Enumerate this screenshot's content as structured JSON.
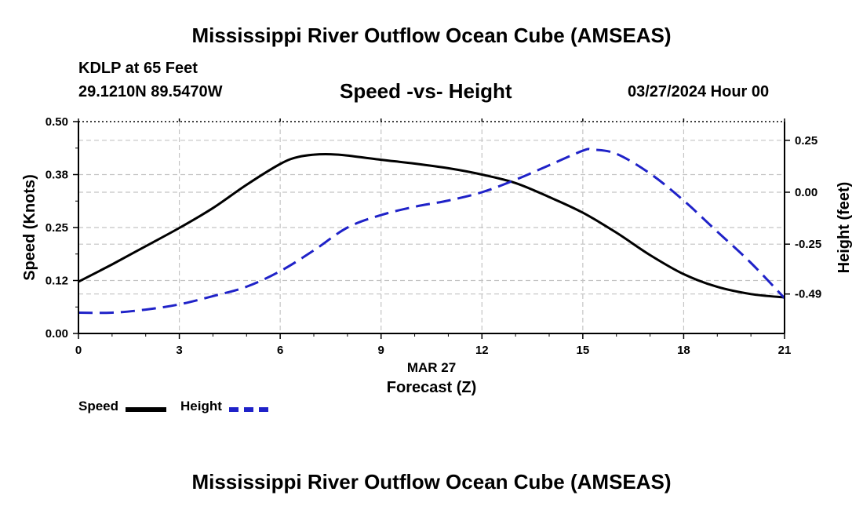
{
  "page": {
    "title": "Mississippi River Outflow Ocean Cube (AMSEAS)",
    "footer_title": "Mississippi River Outflow Ocean Cube (AMSEAS)",
    "station": "KDLP at 65 Feet",
    "coordinates": "29.1210N  89.5470W",
    "subtitle": "Speed -vs- Height",
    "datetime": "03/27/2024 Hour 00"
  },
  "legend": {
    "speed_label": "Speed",
    "height_label": "Height"
  },
  "colors": {
    "speed": "#000000",
    "height": "#1f22c8",
    "grid": "#c4c4c4"
  },
  "chart_data": {
    "type": "line",
    "title": "Speed -vs- Height",
    "xlabel": "Forecast (Z)",
    "xlabel_date": "MAR 27",
    "xlim": [
      0,
      21
    ],
    "xticks": [
      0,
      3,
      6,
      9,
      12,
      15,
      18,
      21
    ],
    "xtick_labels": [
      "0",
      "3",
      "6",
      "9",
      "12",
      "15",
      "18",
      "21"
    ],
    "y_left": {
      "label": "Speed (Knots)",
      "lim": [
        0,
        0.5
      ],
      "ticks": [
        0,
        0.125,
        0.25,
        0.375,
        0.5
      ],
      "tick_labels": [
        "0.00",
        "0.12",
        "0.25",
        "0.38",
        "0.50"
      ]
    },
    "y_right": {
      "label": "Height (feet)",
      "lim": [
        -0.68,
        0.34
      ],
      "ticks": [
        -0.49,
        -0.25,
        0.0,
        0.25
      ],
      "tick_labels": [
        "-0.49",
        "-0.25",
        "0.00",
        "0.25"
      ]
    },
    "grid": true,
    "series": [
      {
        "name": "Speed",
        "axis": "left",
        "style": "solid",
        "x": [
          0,
          1,
          2,
          3,
          4,
          5,
          6,
          6.5,
          7,
          7.5,
          8,
          9,
          10,
          11,
          12,
          13,
          14,
          15,
          16,
          17,
          18,
          19,
          20,
          21
        ],
        "values": [
          0.122,
          0.163,
          0.206,
          0.249,
          0.296,
          0.351,
          0.4,
          0.416,
          0.422,
          0.423,
          0.42,
          0.41,
          0.401,
          0.39,
          0.375,
          0.355,
          0.322,
          0.285,
          0.238,
          0.185,
          0.14,
          0.11,
          0.093,
          0.085
        ]
      },
      {
        "name": "Height",
        "axis": "right",
        "style": "dashed",
        "x": [
          0,
          1,
          2,
          3,
          4,
          5,
          6,
          7,
          8,
          9,
          10,
          11,
          12,
          13,
          14,
          15,
          15.3,
          16,
          17,
          18,
          19,
          20,
          21
        ],
        "values": [
          -0.58,
          -0.58,
          -0.565,
          -0.54,
          -0.5,
          -0.455,
          -0.38,
          -0.28,
          -0.17,
          -0.11,
          -0.07,
          -0.04,
          0.0,
          0.06,
          0.13,
          0.2,
          0.205,
          0.185,
          0.09,
          -0.04,
          -0.19,
          -0.34,
          -0.51
        ]
      }
    ]
  }
}
